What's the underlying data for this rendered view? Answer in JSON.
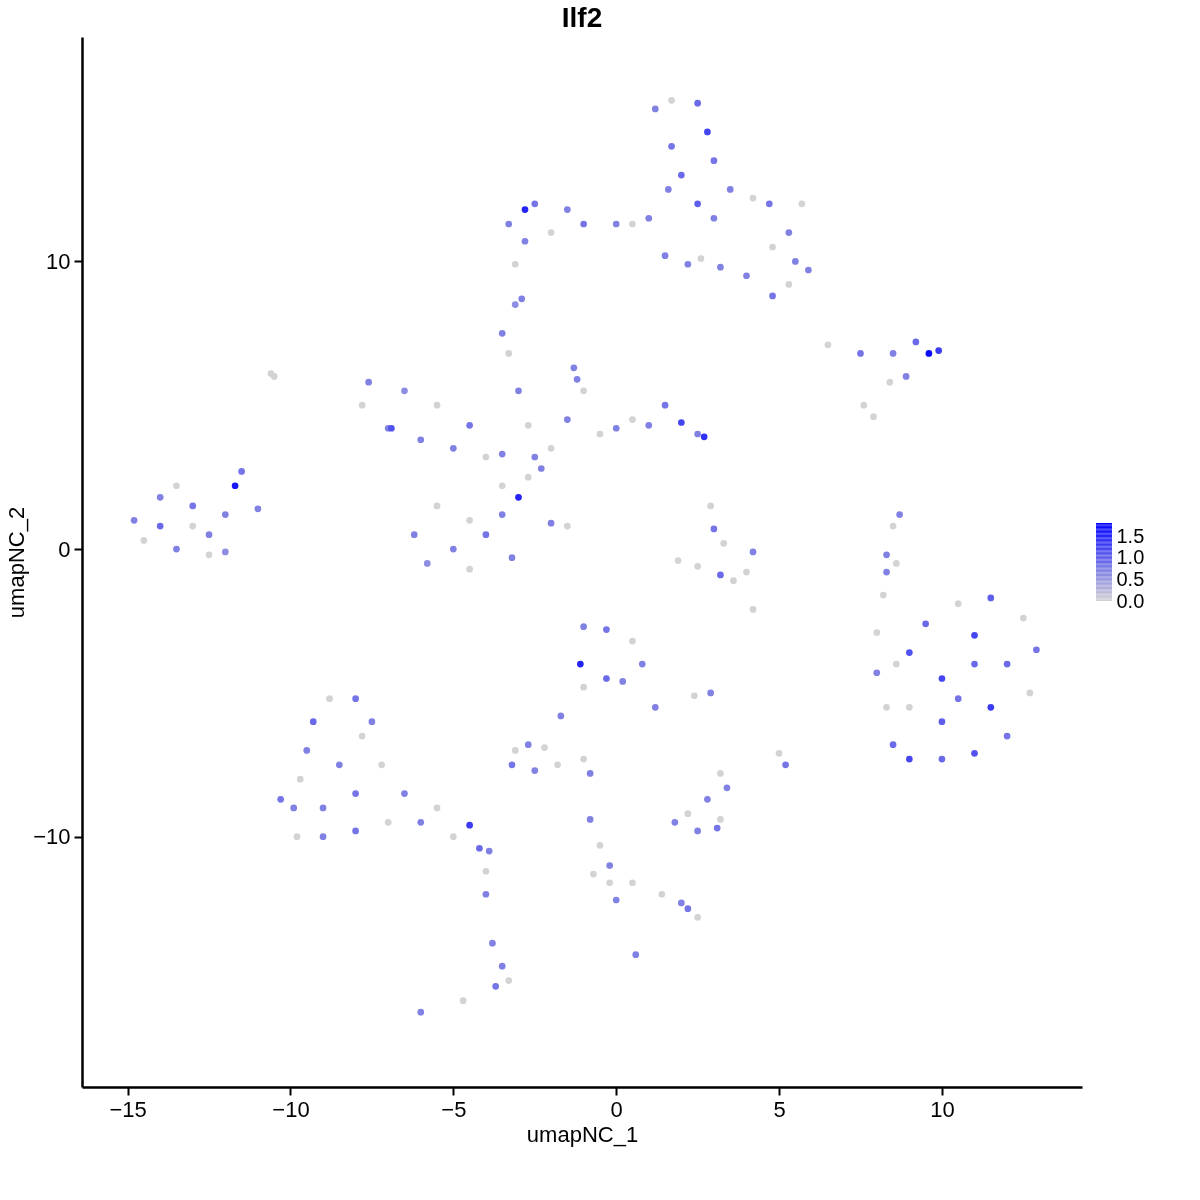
{
  "chart_data": {
    "type": "scatter",
    "title": "Ilf2",
    "xlabel": "umapNC_1",
    "ylabel": "umapNC_2",
    "marker": "circle",
    "grid": false,
    "xlim": [
      -16.4,
      14.3
    ],
    "ylim": [
      -18.7,
      17.8
    ],
    "xticks": [
      -15,
      -10,
      -5,
      0,
      5,
      10
    ],
    "yticks": [
      -10,
      0,
      10
    ],
    "clim": [
      0,
      1.8
    ],
    "cticks": [
      {
        "value": 0,
        "label": "0.0"
      },
      {
        "value": 0.5,
        "label": "0.5"
      },
      {
        "value": 1,
        "label": "1.0"
      },
      {
        "value": 1.5,
        "label": "1.5"
      }
    ],
    "x": [
      -14.8,
      -14.5,
      -14,
      -13.5,
      -13,
      -12.5,
      -12.5,
      -13.5,
      -14,
      -12,
      -11.5,
      -11.7,
      -11,
      -12,
      -13,
      -7.6,
      -7.8,
      -7,
      -6.5,
      -5.5,
      -6,
      -5,
      -4,
      -3.5,
      -4.5,
      -2.7,
      -2.5,
      -3.5,
      -3.3,
      -3,
      -2.7,
      -6.9,
      -6.2,
      -5.5,
      -5,
      -4.5,
      -4,
      -3.5,
      -4.5,
      -3.2,
      -5.8,
      -3.5,
      -3,
      -2,
      -1.5,
      -1.3,
      -1,
      -1.5,
      -0.5,
      0,
      0.5,
      1,
      1.5,
      2,
      2.5,
      2.7,
      -2,
      -2.3,
      -1.2,
      -3.3,
      -2.8,
      -2.5,
      -1.5,
      -1,
      -2,
      -2.8,
      -3.1,
      0,
      0.5,
      1,
      1.7,
      1.2,
      1.7,
      2.5,
      2.8,
      3,
      2,
      1.6,
      2.5,
      3,
      3.5,
      4.2,
      4.7,
      5.7,
      5.3,
      4.8,
      5.5,
      5.9,
      5.3,
      4.8,
      4,
      1.5,
      2.6,
      3.2,
      2.2,
      -2.9,
      -3.1,
      6.5,
      7.5,
      8.5,
      9.2,
      9.6,
      9.9,
      8.9,
      8.4,
      7.6,
      7.9,
      2.9,
      3,
      3.3,
      4.2,
      4,
      3.6,
      2.5,
      1.9,
      3.2,
      4.2,
      8.3,
      8.5,
      8.7,
      8.3,
      8.2,
      8.6,
      8,
      8,
      8.3,
      8.5,
      9,
      10,
      11,
      12,
      12.7,
      12.9,
      12.5,
      11.5,
      10.5,
      9.5,
      9,
      10,
      11,
      11.5,
      10,
      9,
      12,
      11,
      10.5,
      8.6,
      -1,
      -0.3,
      0.5,
      0.8,
      1.2,
      -0.3,
      -1.1,
      -1,
      0.2,
      -1.7,
      -2.2,
      -2.7,
      -3.1,
      -2.5,
      -1.8,
      -3.2,
      2.4,
      2.9,
      5,
      5.2,
      3.2,
      3.4,
      -1,
      -0.8,
      1.8,
      2.2,
      2.8,
      3.1,
      2.5,
      3.2,
      -0.8,
      -0.5,
      -0.2,
      -0.2,
      0,
      0.5,
      1.4,
      2.2,
      2.5,
      2,
      0.6,
      -0.7,
      -9.9,
      -10.3,
      -9.8,
      -9,
      -8,
      -7,
      -6,
      -5,
      -4.2,
      -3.9,
      -4.5,
      -5.5,
      -6.5,
      -7.2,
      -7.5,
      -8,
      -8.8,
      -9.3,
      -9.5,
      -9.7,
      -8.5,
      -8,
      -9,
      -7.8,
      -4,
      -4,
      -3.8,
      -3.5,
      -3.7,
      -3.3,
      -6,
      -4.7,
      -10.6,
      -10.5
    ],
    "values": [
      1,
      0.3,
      1.8,
      2.2,
      1.5,
      0.5,
      -0.2,
      0,
      0.8,
      1.2,
      2.7,
      2.2,
      1.4,
      -0.1,
      0.8,
      5.8,
      5,
      4.2,
      5.5,
      5,
      3.8,
      3.5,
      3.2,
      3.3,
      4.3,
      2.5,
      3.2,
      7.5,
      6.8,
      5.5,
      4.3,
      4.2,
      0.5,
      1.5,
      0,
      -0.7,
      0.5,
      1.2,
      1,
      -0.3,
      -0.5,
      2.2,
      1.8,
      0.9,
      0.8,
      6.3,
      5.5,
      4.5,
      4,
      4.2,
      4.5,
      4.3,
      5,
      4.4,
      4,
      3.9,
      3.5,
      2.8,
      5.9,
      11.3,
      11.8,
      12,
      11.8,
      11.3,
      11,
      10.7,
      9.9,
      11.3,
      11.3,
      11.5,
      14,
      15.3,
      15.6,
      15.5,
      14.5,
      13.5,
      13,
      12.5,
      12,
      11.5,
      12.5,
      12.2,
      12,
      12,
      11,
      10.5,
      10,
      9.7,
      9.2,
      8.8,
      9.5,
      10.2,
      10.1,
      9.8,
      9.9,
      8.7,
      8.5,
      7.1,
      6.8,
      6.8,
      7.2,
      6.8,
      6.9,
      6,
      5.8,
      5,
      4.6,
      1.5,
      0.7,
      0.2,
      -0.1,
      -0.8,
      -1.1,
      -0.6,
      -0.4,
      -0.9,
      -2.1,
      -0.2,
      0.8,
      1.2,
      -0.8,
      -1.6,
      -0.5,
      -2.9,
      -4.3,
      -5.5,
      -6.8,
      -7.3,
      -7.3,
      -7.1,
      -6.5,
      -5,
      -3.5,
      -2.4,
      -1.7,
      -1.9,
      -2.6,
      -3.6,
      -4.5,
      -4,
      -5.5,
      -6,
      -5.5,
      -4,
      -3,
      -5.2,
      -4,
      -2.7,
      -2.8,
      -3.2,
      -4,
      -5.5,
      -4.5,
      -4,
      -4.8,
      -4.6,
      -5.8,
      -6.9,
      -6.8,
      -7,
      -7.7,
      -7.5,
      -7.5,
      -5.1,
      -5,
      -7.1,
      -7.5,
      -7.8,
      -8.3,
      -7.3,
      -7.8,
      -9.5,
      -9.2,
      -8.7,
      -9.7,
      -9.8,
      -9.4,
      -9.4,
      -10.3,
      -11,
      -11.6,
      -12.2,
      -11.6,
      -12,
      -12.5,
      -12.8,
      -12.3,
      -14.1,
      -11.3,
      -9,
      -8.7,
      -10,
      -10,
      -9.8,
      -9.5,
      -9.5,
      -10,
      -10.4,
      -10.5,
      -9.6,
      -9,
      -8.5,
      -7.5,
      -6,
      -5.2,
      -5.2,
      -6,
      -7,
      -8,
      -7.5,
      -8.5,
      -9,
      -6.5,
      -11.2,
      -12,
      -13.7,
      -14.5,
      -15.2,
      -15,
      -16.1,
      -15.7,
      6.1,
      6
    ],
    "cvalues": [
      0.7,
      0,
      0.7,
      0,
      0.8,
      0.7,
      0,
      0.7,
      0.9,
      0.7,
      0.8,
      1.6,
      0.7,
      0.6,
      0,
      0.7,
      0,
      0.7,
      0.6,
      0,
      0.7,
      0.7,
      0,
      0.7,
      0.8,
      0,
      0.7,
      0.7,
      0,
      0.7,
      0,
      1.1,
      0.7,
      0,
      0.7,
      0,
      0.8,
      0.7,
      0,
      0.7,
      0.6,
      0,
      1.5,
      0.7,
      0,
      0.7,
      0,
      0.7,
      0,
      0.7,
      0,
      0.7,
      0.8,
      1.2,
      0.7,
      1.4,
      0,
      0.7,
      0.7,
      0.7,
      1.5,
      0.8,
      0.7,
      0.8,
      0,
      0.7,
      0,
      0.7,
      0,
      0.7,
      0.8,
      0.7,
      0,
      0.9,
      1.2,
      0.8,
      0.9,
      0.7,
      1,
      0.7,
      0.7,
      0,
      0.8,
      0,
      0.7,
      0,
      0.7,
      0.7,
      0,
      0.8,
      0.7,
      0.7,
      0,
      0.7,
      0.7,
      0.7,
      0.6,
      0,
      0.8,
      0.7,
      0.9,
      1.7,
      1.3,
      0.7,
      0,
      0,
      0,
      0,
      0.8,
      0,
      0.7,
      0,
      0,
      0,
      0,
      0.9,
      0,
      0.7,
      0,
      0.7,
      0.7,
      0,
      0,
      0,
      0.7,
      0,
      0.9,
      1.2,
      0.9,
      1.1,
      0.8,
      0,
      0.8,
      0,
      1,
      0,
      0.9,
      1.1,
      1.2,
      0.9,
      1.3,
      1,
      0,
      0.9,
      1.2,
      0.8,
      0,
      0.7,
      0.8,
      0,
      0.7,
      0.7,
      0.9,
      1.5,
      0,
      0.7,
      0.7,
      0,
      0.7,
      0,
      0.7,
      0,
      0.8,
      0,
      0.7,
      0,
      0.8,
      0,
      0.7,
      0,
      0.7,
      0.7,
      0,
      0.7,
      0.8,
      0.7,
      0,
      0.7,
      0,
      0.7,
      0,
      0.7,
      0,
      0,
      0.8,
      0,
      0.7,
      0.7,
      0,
      0.7,
      0.8,
      0,
      0.7,
      0.8,
      0,
      0.7,
      0,
      0.9,
      0.7,
      1.3,
      0,
      0.7,
      0,
      0.7,
      0.8,
      0,
      0.9,
      0.7,
      0,
      0.7,
      0.8,
      0.7,
      0,
      0,
      0.7,
      0.7,
      0.7,
      0.8,
      0,
      0.7,
      0,
      0,
      0
    ]
  }
}
